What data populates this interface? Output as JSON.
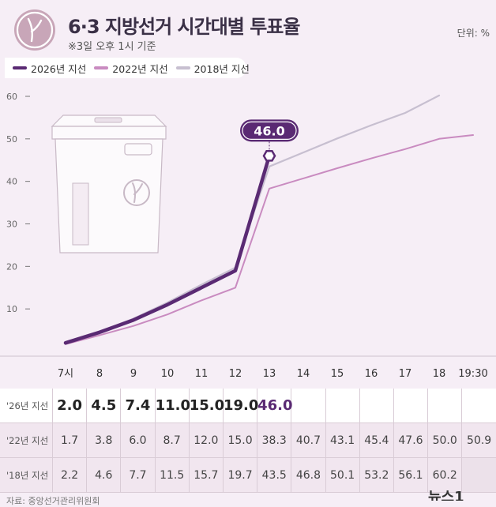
{
  "header": {
    "title": "6·3 지방선거 시간대별 투표율",
    "subtitle": "※3일 오후 1시 기준",
    "unit": "단위: %"
  },
  "legend": [
    {
      "label": "2026년 지선",
      "color": "#5a2a73"
    },
    {
      "label": "2022년 지선",
      "color": "#c98bc0"
    },
    {
      "label": "2018년 지선",
      "color": "#c7bfd0"
    }
  ],
  "chart_data": {
    "type": "line",
    "title": "6·3 지방선거 시간대별 투표율",
    "categories": [
      "7시",
      "8",
      "9",
      "10",
      "11",
      "12",
      "13",
      "14",
      "15",
      "16",
      "17",
      "18",
      "19:30"
    ],
    "ylim": [
      0,
      60
    ],
    "yticks": [
      10,
      20,
      30,
      40,
      50,
      60
    ],
    "grid": false,
    "legend_position": "top-left",
    "series": [
      {
        "name": "2026년 지선",
        "values": [
          2.0,
          4.5,
          7.4,
          11.0,
          15.0,
          19.0,
          46.0,
          null,
          null,
          null,
          null,
          null,
          null
        ]
      },
      {
        "name": "2022년 지선",
        "values": [
          1.7,
          3.8,
          6.0,
          8.7,
          12.0,
          15.0,
          38.3,
          40.7,
          43.1,
          45.4,
          47.6,
          50.0,
          50.9
        ]
      },
      {
        "name": "2018년 지선",
        "values": [
          2.2,
          4.6,
          7.7,
          11.5,
          15.7,
          19.7,
          43.5,
          46.8,
          50.1,
          53.2,
          56.1,
          60.2,
          null
        ]
      }
    ],
    "annotation": "46.0"
  },
  "table": {
    "rows": [
      {
        "label": "'26년 지선",
        "values": [
          "2.0",
          "4.5",
          "7.4",
          "11.0",
          "15.0",
          "19.0",
          "46.0",
          "",
          "",
          "",
          "",
          "",
          ""
        ]
      },
      {
        "label": "'22년 지선",
        "values": [
          "1.7",
          "3.8",
          "6.0",
          "8.7",
          "12.0",
          "15.0",
          "38.3",
          "40.7",
          "43.1",
          "45.4",
          "47.6",
          "50.0",
          "50.9"
        ]
      },
      {
        "label": "'18년 지선",
        "values": [
          "2.2",
          "4.6",
          "7.7",
          "11.5",
          "15.7",
          "19.7",
          "43.5",
          "46.8",
          "50.1",
          "53.2",
          "56.1",
          "60.2",
          ""
        ]
      }
    ]
  },
  "footer": {
    "source": "자료: 중앙선거관리위원회",
    "brand": "뉴스1"
  }
}
